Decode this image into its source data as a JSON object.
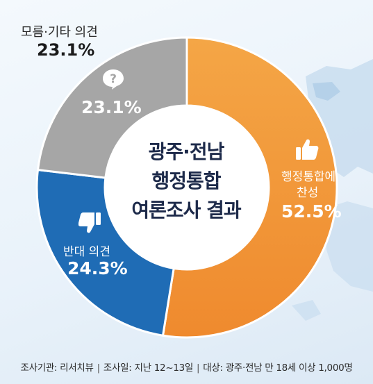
{
  "center_title": {
    "line1": "광주·전남",
    "line2": "행정통합",
    "line3": "여론조사 결과"
  },
  "legend_other": {
    "label": "모름·기타 의견",
    "value": "23.1%"
  },
  "segments": {
    "approve": {
      "label_line1": "행정통합에",
      "label_line2": "찬성",
      "value": "52.5%",
      "icon": "thumbs-up-icon"
    },
    "oppose": {
      "label": "반대 의견",
      "value": "24.3%",
      "icon": "thumbs-down-icon"
    },
    "other": {
      "value": "23.1%",
      "icon": "question-bubble-icon"
    }
  },
  "footer": {
    "agency": "조사기관: 리서치뷰",
    "period": "조사일: 지난 12~13일",
    "target": "대상: 광주·전남 만 18세 이상 1,000명"
  },
  "chart_data": {
    "type": "pie",
    "title": "광주·전남 행정통합 여론조사 결과",
    "categories": [
      "행정통합에 찬성",
      "반대 의견",
      "모름·기타 의견"
    ],
    "values": [
      52.5,
      24.3,
      23.1
    ],
    "colors": [
      "#ef8a2e",
      "#1f6cb5",
      "#a6a6a6"
    ]
  }
}
